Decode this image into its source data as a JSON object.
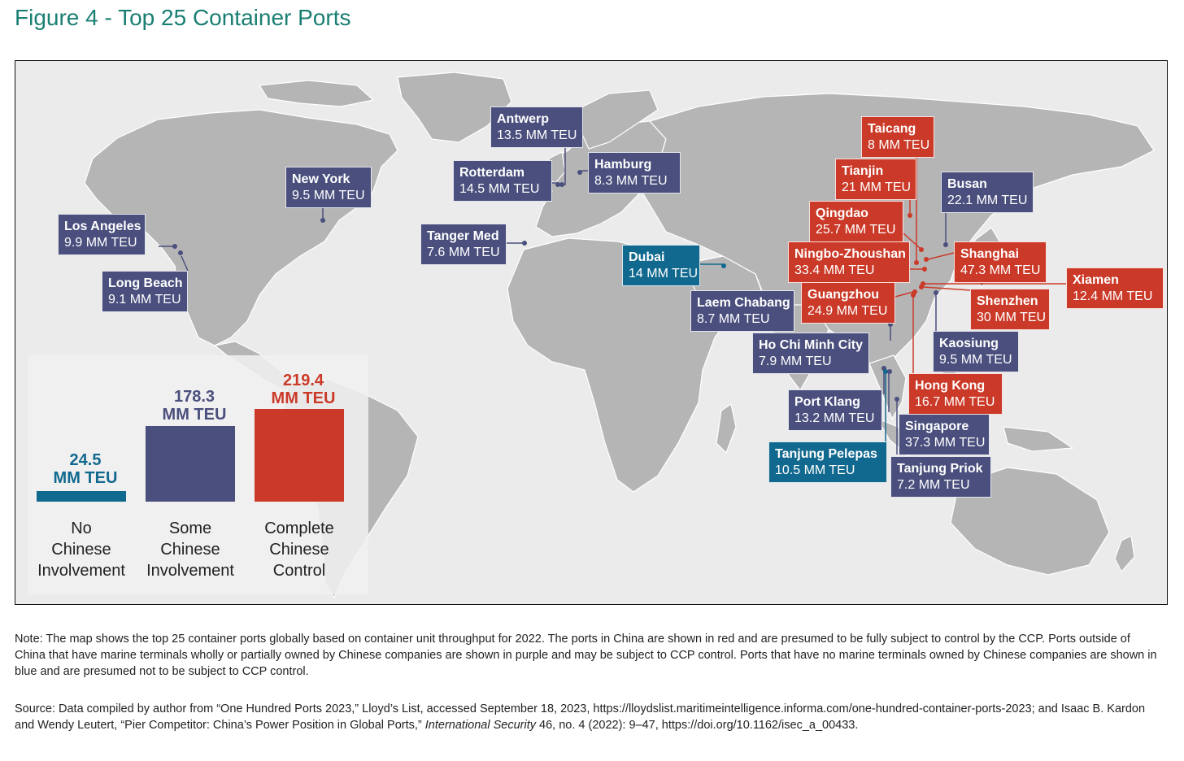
{
  "title": "Figure 4 - Top 25 Container Ports",
  "colors": {
    "none": "#12698f",
    "some": "#4a4f7d",
    "full": "#cb3a28",
    "land": "#b5b5b5",
    "ocean": "#ebebeb",
    "title": "#1a7f73"
  },
  "ports": [
    {
      "id": "antwerp",
      "name": "Antwerp",
      "teu": "13.5 MM TEU",
      "category": "some"
    },
    {
      "id": "rotterdam",
      "name": "Rotterdam",
      "teu": "14.5 MM TEU",
      "category": "some"
    },
    {
      "id": "hamburg",
      "name": "Hamburg",
      "teu": "8.3 MM TEU",
      "category": "some"
    },
    {
      "id": "new-york",
      "name": "New York",
      "teu": "9.5 MM TEU",
      "category": "some"
    },
    {
      "id": "los-angeles",
      "name": "Los Angeles",
      "teu": "9.9 MM TEU",
      "category": "some"
    },
    {
      "id": "long-beach",
      "name": "Long Beach",
      "teu": "9.1 MM TEU",
      "category": "some"
    },
    {
      "id": "tanger-med",
      "name": "Tanger Med",
      "teu": "7.6 MM TEU",
      "category": "some"
    },
    {
      "id": "dubai",
      "name": "Dubai",
      "teu": "14 MM TEU",
      "category": "none"
    },
    {
      "id": "laem-chabang",
      "name": "Laem Chabang",
      "teu": "8.7 MM TEU",
      "category": "some"
    },
    {
      "id": "ho-chi-minh-city",
      "name": "Ho Chi Minh City",
      "teu": "7.9 MM TEU",
      "category": "some"
    },
    {
      "id": "port-klang",
      "name": "Port Klang",
      "teu": "13.2 MM TEU",
      "category": "some"
    },
    {
      "id": "tanjung-pelepas",
      "name": "Tanjung Pelepas",
      "teu": "10.5 MM TEU",
      "category": "none"
    },
    {
      "id": "singapore",
      "name": "Singapore",
      "teu": "37.3 MM TEU",
      "category": "some"
    },
    {
      "id": "tanjung-priok",
      "name": "Tanjung Priok",
      "teu": "7.2 MM TEU",
      "category": "some"
    },
    {
      "id": "kaosiung",
      "name": "Kaosiung",
      "teu": "9.5 MM TEU",
      "category": "some"
    },
    {
      "id": "busan",
      "name": "Busan",
      "teu": "22.1 MM TEU",
      "category": "some"
    },
    {
      "id": "taicang",
      "name": "Taicang",
      "teu": "8 MM TEU",
      "category": "full"
    },
    {
      "id": "tianjin",
      "name": "Tianjin",
      "teu": "21 MM TEU",
      "category": "full"
    },
    {
      "id": "qingdao",
      "name": "Qingdao",
      "teu": "25.7 MM TEU",
      "category": "full"
    },
    {
      "id": "ningbo-zhoushan",
      "name": "Ningbo-Zhoushan",
      "teu": "33.4 MM TEU",
      "category": "full"
    },
    {
      "id": "shanghai",
      "name": "Shanghai",
      "teu": "47.3 MM TEU",
      "category": "full"
    },
    {
      "id": "guangzhou",
      "name": "Guangzhou",
      "teu": "24.9 MM TEU",
      "category": "full"
    },
    {
      "id": "shenzhen",
      "name": "Shenzhen",
      "teu": "30 MM TEU",
      "category": "full"
    },
    {
      "id": "xiamen",
      "name": "Xiamen",
      "teu": "12.4 MM TEU",
      "category": "full"
    },
    {
      "id": "hong-kong",
      "name": "Hong Kong",
      "teu": "16.7 MM TEU",
      "category": "full"
    }
  ],
  "legend": [
    {
      "value_line1": "24.5",
      "value_line2": "MM TEU",
      "value": 24.5,
      "label": [
        "No",
        "Chinese",
        "Involvement"
      ],
      "category": "none"
    },
    {
      "value_line1": "178.3",
      "value_line2": "MM TEU",
      "value": 178.3,
      "label": [
        "Some",
        "Chinese",
        "Involvement"
      ],
      "category": "some"
    },
    {
      "value_line1": "219.4",
      "value_line2": "MM TEU",
      "value": 219.4,
      "label": [
        "Complete",
        "Chinese",
        "Control"
      ],
      "category": "full"
    }
  ],
  "note": "Note: The map shows the top 25 container ports globally based on container unit throughput for 2022. The ports in China are shown in red and are presumed to be fully subject to control by the CCP. Ports outside of China that have marine terminals wholly or partially owned by Chinese companies are shown in purple and may be subject to CCP control. Ports that have no marine terminals owned by Chinese companies are shown in blue and are presumed not to be subject to CCP control.",
  "source": {
    "part1": "Source: Data compiled by author from “One Hundred Ports 2023,” Lloyd’s List, accessed September 18, 2023, https://lloydslist.maritimeintelligence.informa.com/one-hundred-container-ports-2023; and Isaac B. Kardon and Wendy Leutert, “Pier Competitor: China’s Power Position in Global Ports,” ",
    "journal": "International Security",
    "part2": " 46, no. 4 (2022): 9–47, https://doi.org/10.1162/isec_a_00433."
  }
}
